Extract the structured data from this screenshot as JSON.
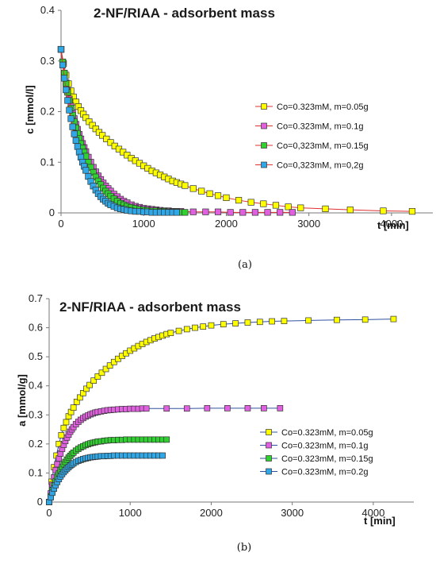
{
  "chart_data": [
    {
      "type": "line",
      "caption": "(a)",
      "title": "2-NF/RIAA - adsorbent mass",
      "xlabel": "t [min]",
      "ylabel": "c [mmol/l]",
      "xlim": [
        0,
        4500
      ],
      "ylim": [
        0,
        0.4
      ],
      "xticks": [
        0,
        1000,
        2000,
        3000,
        4000
      ],
      "yticks": [
        0,
        0.1,
        0.2,
        0.3,
        0.4
      ],
      "ytick_labels": [
        "0",
        "0.1",
        "0.2",
        "0.3",
        "0.4"
      ],
      "grid": false,
      "legend_position": "right",
      "series": [
        {
          "name": "Co=0.323mM, m=0.05g",
          "color": "#ffff00",
          "line_color": "#e03030",
          "x": [
            0,
            30,
            60,
            90,
            120,
            150,
            180,
            210,
            240,
            270,
            300,
            340,
            380,
            420,
            460,
            500,
            550,
            600,
            650,
            700,
            750,
            800,
            850,
            900,
            950,
            1000,
            1050,
            1100,
            1150,
            1200,
            1250,
            1300,
            1350,
            1400,
            1450,
            1500,
            1600,
            1700,
            1800,
            1900,
            2000,
            2150,
            2300,
            2450,
            2600,
            2750,
            2900,
            3200,
            3500,
            3900,
            4250
          ],
          "y": [
            0.323,
            0.295,
            0.272,
            0.255,
            0.241,
            0.229,
            0.219,
            0.21,
            0.202,
            0.195,
            0.188,
            0.18,
            0.173,
            0.166,
            0.159,
            0.153,
            0.146,
            0.139,
            0.132,
            0.126,
            0.12,
            0.114,
            0.108,
            0.103,
            0.098,
            0.093,
            0.088,
            0.083,
            0.079,
            0.075,
            0.071,
            0.067,
            0.063,
            0.06,
            0.057,
            0.054,
            0.048,
            0.043,
            0.038,
            0.034,
            0.03,
            0.025,
            0.021,
            0.018,
            0.015,
            0.012,
            0.01,
            0.008,
            0.006,
            0.004,
            0.003
          ]
        },
        {
          "name": "Co=0.323mM, m=0.1g",
          "color": "#e060e0",
          "line_color": "#e03030",
          "x": [
            0,
            20,
            40,
            60,
            80,
            100,
            120,
            140,
            160,
            180,
            200,
            220,
            240,
            260,
            280,
            300,
            330,
            360,
            390,
            420,
            450,
            480,
            510,
            540,
            570,
            600,
            640,
            680,
            720,
            760,
            800,
            850,
            900,
            950,
            1000,
            1050,
            1100,
            1150,
            1200,
            1250,
            1300,
            1350,
            1400,
            1450,
            1600,
            1750,
            1900,
            2050,
            2200,
            2350,
            2500,
            2650,
            2800
          ],
          "y": [
            0.323,
            0.298,
            0.276,
            0.257,
            0.24,
            0.225,
            0.211,
            0.198,
            0.186,
            0.175,
            0.165,
            0.155,
            0.146,
            0.137,
            0.129,
            0.121,
            0.11,
            0.1,
            0.09,
            0.081,
            0.073,
            0.066,
            0.059,
            0.053,
            0.048,
            0.043,
            0.037,
            0.032,
            0.027,
            0.023,
            0.02,
            0.016,
            0.013,
            0.011,
            0.009,
            0.008,
            0.007,
            0.006,
            0.005,
            0.004,
            0.004,
            0.003,
            0.003,
            0.003,
            0.002,
            0.002,
            0.002,
            0.001,
            0.001,
            0.001,
            0.001,
            0.001,
            0.001
          ]
        },
        {
          "name": "Co=0,323mM, m=0.15g",
          "color": "#30d030",
          "line_color": "#e03030",
          "x": [
            0,
            20,
            40,
            60,
            80,
            100,
            120,
            140,
            160,
            180,
            200,
            220,
            240,
            260,
            280,
            300,
            330,
            360,
            390,
            420,
            450,
            480,
            510,
            540,
            570,
            600,
            640,
            680,
            720,
            760,
            800,
            850,
            900,
            950,
            1000,
            1050,
            1100,
            1150,
            1200,
            1250,
            1300,
            1350,
            1400,
            1450,
            1500
          ],
          "y": [
            0.323,
            0.298,
            0.276,
            0.256,
            0.238,
            0.222,
            0.207,
            0.193,
            0.18,
            0.168,
            0.157,
            0.147,
            0.137,
            0.128,
            0.12,
            0.112,
            0.1,
            0.09,
            0.08,
            0.071,
            0.063,
            0.056,
            0.049,
            0.043,
            0.038,
            0.033,
            0.028,
            0.023,
            0.019,
            0.016,
            0.013,
            0.011,
            0.009,
            0.007,
            0.006,
            0.005,
            0.004,
            0.004,
            0.003,
            0.003,
            0.002,
            0.002,
            0.002,
            0.001,
            0.001
          ]
        },
        {
          "name": "Co=0,323mM, m=0,2g",
          "color": "#30a8e8",
          "line_color": "#e03030",
          "x": [
            0,
            20,
            40,
            60,
            80,
            100,
            120,
            140,
            160,
            180,
            200,
            220,
            240,
            260,
            280,
            300,
            330,
            360,
            390,
            420,
            450,
            480,
            510,
            540,
            570,
            600,
            640,
            680,
            720,
            760,
            800,
            850,
            900,
            950,
            1000,
            1050,
            1100,
            1150,
            1200,
            1250,
            1300,
            1350,
            1400
          ],
          "y": [
            0.323,
            0.292,
            0.266,
            0.243,
            0.222,
            0.203,
            0.186,
            0.17,
            0.156,
            0.143,
            0.131,
            0.12,
            0.11,
            0.1,
            0.092,
            0.084,
            0.072,
            0.062,
            0.053,
            0.045,
            0.038,
            0.032,
            0.027,
            0.023,
            0.019,
            0.016,
            0.013,
            0.01,
            0.008,
            0.007,
            0.005,
            0.004,
            0.003,
            0.003,
            0.002,
            0.002,
            0.001,
            0.001,
            0.001,
            0.001,
            0.001,
            0.001,
            0.001
          ]
        }
      ]
    },
    {
      "type": "line",
      "caption": "(b)",
      "title": "2-NF/RIAA - adsorbent mass",
      "xlabel": "t [min]",
      "ylabel": "a [mmol/g]",
      "xlim": [
        0,
        4500
      ],
      "ylim": [
        0,
        0.7
      ],
      "xticks": [
        0,
        1000,
        2000,
        3000,
        4000
      ],
      "yticks": [
        0,
        0.1,
        0.2,
        0.3,
        0.4,
        0.5,
        0.6,
        0.7
      ],
      "ytick_labels": [
        "0",
        "0.1",
        "0.2",
        "0.3",
        "0.4",
        "0.5",
        "0.6",
        "0.7"
      ],
      "grid": false,
      "legend_position": "right",
      "series": [
        {
          "name": "Co=0.323mM, m=0.05g",
          "color": "#ffff00",
          "line_color": "#3050a0",
          "x": [
            0,
            30,
            60,
            90,
            120,
            150,
            180,
            210,
            240,
            270,
            300,
            340,
            380,
            420,
            460,
            500,
            550,
            600,
            650,
            700,
            750,
            800,
            850,
            900,
            950,
            1000,
            1050,
            1100,
            1150,
            1200,
            1250,
            1300,
            1350,
            1400,
            1450,
            1500,
            1600,
            1700,
            1800,
            1900,
            2000,
            2150,
            2300,
            2450,
            2600,
            2750,
            2900,
            3200,
            3550,
            3900,
            4250
          ],
          "y": [
            0,
            0.07,
            0.12,
            0.16,
            0.2,
            0.23,
            0.255,
            0.275,
            0.295,
            0.31,
            0.325,
            0.345,
            0.36,
            0.375,
            0.39,
            0.403,
            0.418,
            0.432,
            0.445,
            0.458,
            0.47,
            0.482,
            0.493,
            0.503,
            0.512,
            0.521,
            0.529,
            0.537,
            0.544,
            0.551,
            0.557,
            0.563,
            0.568,
            0.573,
            0.578,
            0.582,
            0.589,
            0.595,
            0.6,
            0.604,
            0.608,
            0.612,
            0.615,
            0.618,
            0.62,
            0.622,
            0.623,
            0.625,
            0.627,
            0.628,
            0.63
          ]
        },
        {
          "name": "Co=0.323mM, m=0.1g",
          "color": "#e060e0",
          "line_color": "#3050a0",
          "x": [
            0,
            20,
            40,
            60,
            80,
            100,
            120,
            140,
            160,
            180,
            200,
            220,
            240,
            260,
            280,
            300,
            330,
            360,
            390,
            420,
            450,
            480,
            510,
            540,
            570,
            600,
            640,
            680,
            720,
            760,
            800,
            850,
            900,
            950,
            1000,
            1050,
            1100,
            1150,
            1200,
            1450,
            1700,
            1950,
            2200,
            2450,
            2650,
            2850
          ],
          "y": [
            0,
            0.03,
            0.06,
            0.085,
            0.11,
            0.13,
            0.15,
            0.167,
            0.183,
            0.197,
            0.21,
            0.222,
            0.232,
            0.242,
            0.25,
            0.258,
            0.268,
            0.276,
            0.283,
            0.289,
            0.294,
            0.298,
            0.302,
            0.305,
            0.308,
            0.31,
            0.312,
            0.314,
            0.316,
            0.317,
            0.318,
            0.319,
            0.32,
            0.32,
            0.321,
            0.321,
            0.321,
            0.322,
            0.322,
            0.322,
            0.322,
            0.323,
            0.323,
            0.323,
            0.323,
            0.323
          ]
        },
        {
          "name": "Co=0.323mM, m=0.15g",
          "color": "#30d030",
          "line_color": "#3050a0",
          "x": [
            0,
            20,
            40,
            60,
            80,
            100,
            120,
            140,
            160,
            180,
            200,
            220,
            240,
            260,
            280,
            300,
            330,
            360,
            390,
            420,
            450,
            480,
            510,
            540,
            570,
            600,
            640,
            680,
            720,
            760,
            800,
            850,
            900,
            950,
            1000,
            1050,
            1100,
            1150,
            1200,
            1250,
            1300,
            1350,
            1400,
            1450
          ],
          "y": [
            0,
            0.02,
            0.04,
            0.057,
            0.072,
            0.086,
            0.099,
            0.11,
            0.12,
            0.13,
            0.138,
            0.146,
            0.153,
            0.159,
            0.165,
            0.17,
            0.177,
            0.183,
            0.188,
            0.192,
            0.196,
            0.199,
            0.202,
            0.204,
            0.206,
            0.208,
            0.209,
            0.211,
            0.212,
            0.213,
            0.213,
            0.214,
            0.214,
            0.215,
            0.215,
            0.215,
            0.215,
            0.215,
            0.215,
            0.215,
            0.215,
            0.215,
            0.215,
            0.215
          ]
        },
        {
          "name": "Co=0.323mM, m=0.2g",
          "color": "#30a8e8",
          "line_color": "#3050a0",
          "x": [
            0,
            20,
            40,
            60,
            80,
            100,
            120,
            140,
            160,
            180,
            200,
            220,
            240,
            260,
            280,
            300,
            330,
            360,
            390,
            420,
            450,
            480,
            510,
            540,
            570,
            600,
            640,
            680,
            720,
            760,
            800,
            850,
            900,
            950,
            1000,
            1050,
            1100,
            1150,
            1200,
            1250,
            1300,
            1350,
            1400
          ],
          "y": [
            0,
            0.016,
            0.032,
            0.046,
            0.058,
            0.069,
            0.079,
            0.088,
            0.096,
            0.103,
            0.109,
            0.115,
            0.12,
            0.125,
            0.129,
            0.133,
            0.138,
            0.142,
            0.145,
            0.148,
            0.15,
            0.152,
            0.154,
            0.155,
            0.156,
            0.157,
            0.158,
            0.158,
            0.159,
            0.159,
            0.16,
            0.16,
            0.16,
            0.16,
            0.16,
            0.16,
            0.16,
            0.16,
            0.16,
            0.16,
            0.16,
            0.16,
            0.16
          ]
        }
      ]
    }
  ]
}
